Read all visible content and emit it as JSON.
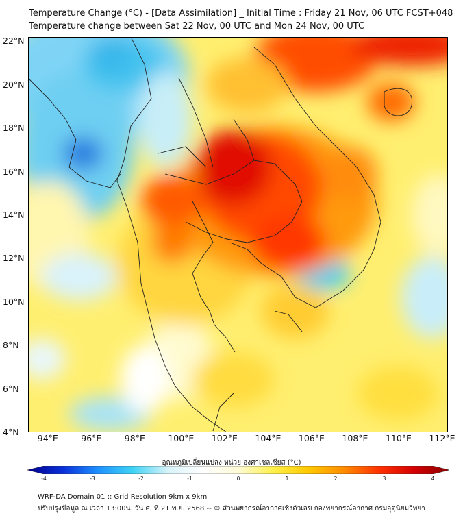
{
  "title": {
    "line1": "Temperature Change (°C) - [Data Assimilation] _ Initial Time : Friday 21 Nov, 06 UTC FCST+048",
    "line2": "Temperature change between Sat 22 Nov, 00 UTC and Mon 24 Nov, 00 UTC"
  },
  "map": {
    "lat_labels": [
      "22°N",
      "20°N",
      "18°N",
      "16°N",
      "14°N",
      "12°N",
      "10°N",
      "8°N",
      "6°N",
      "4°N"
    ],
    "lon_labels": [
      "94°E",
      "96°E",
      "98°E",
      "100°E",
      "102°E",
      "104°E",
      "106°E",
      "108°E",
      "110°E",
      "112°E"
    ],
    "lat_range": [
      4,
      22.2
    ],
    "lon_range": [
      93,
      112.3
    ]
  },
  "colorbar": {
    "title": "อุณหภูมิเปลี่ยนแปลง หน่วย องศาเซลเซียส (°C)",
    "tick_labels": [
      "-4",
      "-3",
      "-2",
      "-1",
      "0",
      "1",
      "2",
      "3",
      "4"
    ],
    "range": [
      -4,
      4
    ],
    "colors": [
      "#00008b",
      "#0a2fd8",
      "#1e90ff",
      "#3fd3f5",
      "#d8f3fa",
      "#ffffff",
      "#fffbd6",
      "#fff04a",
      "#ffc800",
      "#ff8c00",
      "#ff3200",
      "#d30000",
      "#8b0000"
    ]
  },
  "footer": {
    "line1": "WRF-DA Domain 01 :: Grid Resolution 9km x 9km",
    "line2": "ปรับปรุงข้อมูล ณ เวลา 13:00น. วัน ศ. ที่ 21 พ.ย. 2568 -- © ส่วนพยากรณ์อากาศเชิงตัวเลข กองพยากรณ์อากาศ กรมอุตุนิยมวิทยา"
  }
}
